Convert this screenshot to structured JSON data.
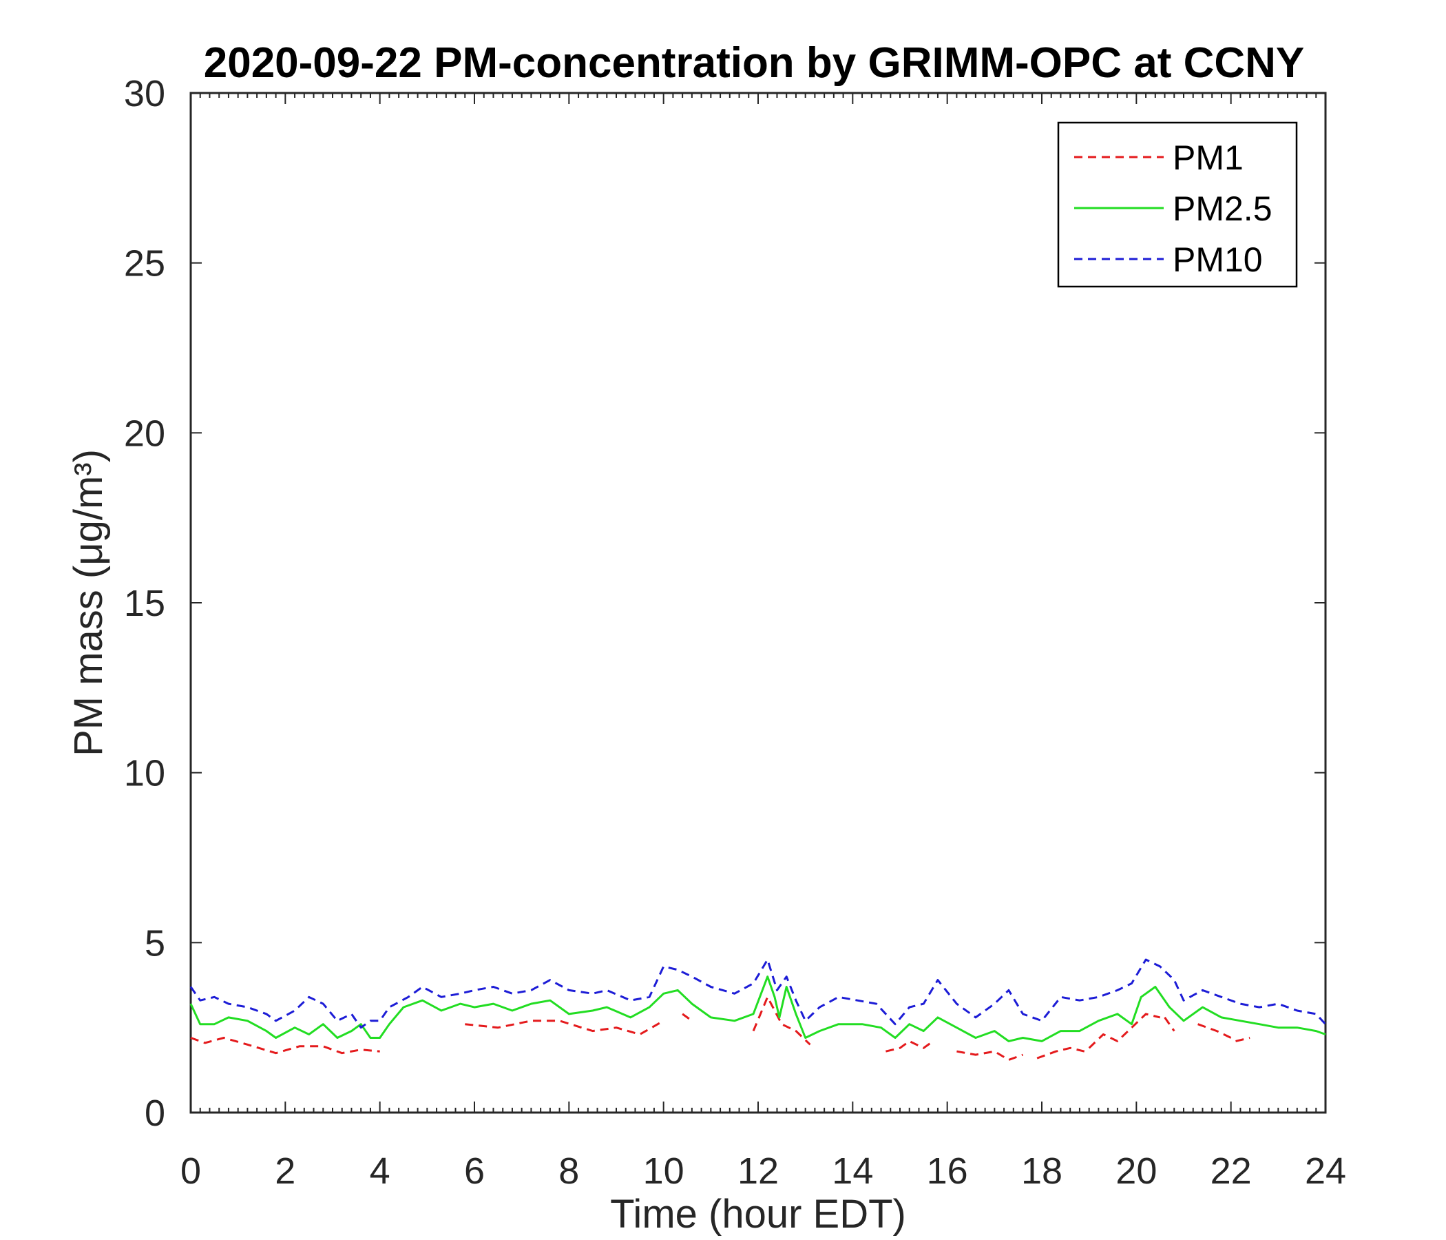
{
  "chart_data": {
    "type": "line",
    "title": "2020-09-22 PM-concentration by GRIMM-OPC at CCNY",
    "xlabel": "Time (hour EDT)",
    "ylabel": "PM mass (μg/m³)",
    "xlim": [
      0,
      24
    ],
    "ylim": [
      0,
      30
    ],
    "xticks": [
      0,
      2,
      4,
      6,
      8,
      10,
      12,
      14,
      16,
      18,
      20,
      22,
      24
    ],
    "yticks": [
      0,
      5,
      10,
      15,
      20,
      25,
      30
    ],
    "grid": false,
    "legend_position": "top-right",
    "series": [
      {
        "name": "PM1",
        "color": "#e41a1c",
        "dash": "dashed",
        "points": [
          [
            0,
            2.2
          ],
          [
            0.3,
            2.05
          ],
          [
            0.7,
            2.2
          ],
          [
            1.2,
            2.0
          ],
          [
            1.8,
            1.75
          ],
          [
            2.3,
            1.95
          ],
          [
            2.8,
            1.95
          ],
          [
            3.2,
            1.75
          ],
          [
            3.6,
            1.85
          ],
          [
            4.0,
            1.8
          ],
          null,
          [
            5.8,
            2.6
          ],
          [
            6.5,
            2.5
          ],
          [
            7.2,
            2.7
          ],
          [
            7.8,
            2.7
          ],
          [
            8.5,
            2.4
          ],
          [
            9.0,
            2.5
          ],
          [
            9.5,
            2.3
          ],
          [
            10.0,
            2.7
          ],
          null,
          [
            10.4,
            2.9
          ],
          [
            10.6,
            2.7
          ],
          null,
          [
            11.9,
            2.4
          ],
          [
            12.2,
            3.4
          ],
          [
            12.5,
            2.6
          ],
          [
            12.8,
            2.4
          ],
          [
            13.1,
            2.0
          ],
          null,
          [
            14.7,
            1.8
          ],
          [
            15.0,
            1.9
          ],
          [
            15.2,
            2.1
          ],
          [
            15.5,
            1.9
          ],
          [
            15.7,
            2.1
          ],
          null,
          [
            16.2,
            1.8
          ],
          [
            16.6,
            1.7
          ],
          [
            17.0,
            1.8
          ],
          [
            17.3,
            1.55
          ],
          [
            17.6,
            1.7
          ],
          null,
          [
            17.9,
            1.6
          ],
          [
            18.3,
            1.8
          ],
          [
            18.6,
            1.9
          ],
          [
            18.9,
            1.8
          ],
          null,
          [
            19.0,
            1.9
          ],
          [
            19.3,
            2.3
          ],
          [
            19.6,
            2.1
          ],
          [
            19.9,
            2.5
          ],
          [
            20.2,
            2.9
          ],
          [
            20.5,
            2.8
          ],
          null,
          [
            20.6,
            2.8
          ],
          [
            20.8,
            2.4
          ],
          null,
          [
            21.3,
            2.6
          ],
          [
            21.7,
            2.4
          ],
          [
            22.0,
            2.2
          ],
          null,
          [
            22.1,
            2.1
          ],
          [
            22.4,
            2.2
          ]
        ]
      },
      {
        "name": "PM2.5",
        "color": "#22dd22",
        "dash": "solid",
        "points": [
          [
            0,
            3.2
          ],
          [
            0.2,
            2.6
          ],
          [
            0.5,
            2.6
          ],
          [
            0.8,
            2.8
          ],
          [
            1.2,
            2.7
          ],
          [
            1.6,
            2.4
          ],
          [
            1.8,
            2.2
          ],
          [
            2.2,
            2.5
          ],
          [
            2.5,
            2.3
          ],
          [
            2.8,
            2.6
          ],
          [
            3.1,
            2.2
          ],
          [
            3.4,
            2.4
          ],
          [
            3.6,
            2.6
          ],
          [
            3.8,
            2.2
          ],
          [
            4.0,
            2.2
          ],
          [
            4.2,
            2.6
          ],
          [
            4.5,
            3.1
          ],
          [
            4.9,
            3.3
          ],
          [
            5.3,
            3.0
          ],
          [
            5.7,
            3.2
          ],
          [
            6.0,
            3.1
          ],
          [
            6.4,
            3.2
          ],
          [
            6.8,
            3.0
          ],
          [
            7.2,
            3.2
          ],
          [
            7.6,
            3.3
          ],
          [
            8.0,
            2.9
          ],
          [
            8.5,
            3.0
          ],
          [
            8.8,
            3.1
          ],
          [
            9.3,
            2.8
          ],
          [
            9.7,
            3.1
          ],
          [
            10.0,
            3.5
          ],
          [
            10.3,
            3.6
          ],
          [
            10.6,
            3.2
          ],
          [
            11.0,
            2.8
          ],
          [
            11.5,
            2.7
          ],
          [
            11.9,
            2.9
          ],
          [
            12.2,
            4.0
          ],
          [
            12.35,
            3.4
          ],
          [
            12.45,
            2.8
          ],
          [
            12.6,
            3.7
          ],
          [
            12.8,
            2.9
          ],
          [
            13.0,
            2.2
          ],
          [
            13.3,
            2.4
          ],
          [
            13.7,
            2.6
          ],
          [
            14.2,
            2.6
          ],
          [
            14.6,
            2.5
          ],
          [
            14.9,
            2.2
          ],
          [
            15.2,
            2.6
          ],
          [
            15.5,
            2.4
          ],
          [
            15.8,
            2.8
          ],
          [
            16.2,
            2.5
          ],
          [
            16.6,
            2.2
          ],
          [
            17.0,
            2.4
          ],
          [
            17.3,
            2.1
          ],
          [
            17.6,
            2.2
          ],
          [
            18.0,
            2.1
          ],
          [
            18.4,
            2.4
          ],
          [
            18.8,
            2.4
          ],
          [
            19.2,
            2.7
          ],
          [
            19.6,
            2.9
          ],
          [
            19.9,
            2.6
          ],
          [
            20.1,
            3.4
          ],
          [
            20.4,
            3.7
          ],
          [
            20.7,
            3.1
          ],
          [
            21.0,
            2.7
          ],
          [
            21.4,
            3.1
          ],
          [
            21.8,
            2.8
          ],
          [
            22.2,
            2.7
          ],
          [
            22.6,
            2.6
          ],
          [
            23.0,
            2.5
          ],
          [
            23.4,
            2.5
          ],
          [
            23.8,
            2.4
          ],
          [
            24.0,
            2.3
          ]
        ]
      },
      {
        "name": "PM10",
        "color": "#1c1cd6",
        "dash": "dashed",
        "points": [
          [
            0,
            3.7
          ],
          [
            0.2,
            3.3
          ],
          [
            0.5,
            3.4
          ],
          [
            0.8,
            3.2
          ],
          [
            1.2,
            3.1
          ],
          [
            1.6,
            2.9
          ],
          [
            1.8,
            2.7
          ],
          [
            2.2,
            3.0
          ],
          [
            2.5,
            3.4
          ],
          [
            2.8,
            3.2
          ],
          [
            3.1,
            2.7
          ],
          [
            3.4,
            2.9
          ],
          [
            3.6,
            2.5
          ],
          [
            3.8,
            2.7
          ],
          [
            4.0,
            2.7
          ],
          [
            4.2,
            3.1
          ],
          [
            4.6,
            3.4
          ],
          [
            4.9,
            3.7
          ],
          [
            5.3,
            3.4
          ],
          [
            5.7,
            3.5
          ],
          [
            6.0,
            3.6
          ],
          [
            6.4,
            3.7
          ],
          [
            6.8,
            3.5
          ],
          [
            7.2,
            3.6
          ],
          [
            7.6,
            3.9
          ],
          [
            8.0,
            3.6
          ],
          [
            8.5,
            3.5
          ],
          [
            8.8,
            3.6
          ],
          [
            9.3,
            3.3
          ],
          [
            9.7,
            3.4
          ],
          [
            10.0,
            4.3
          ],
          [
            10.3,
            4.2
          ],
          [
            10.6,
            4.0
          ],
          [
            11.0,
            3.7
          ],
          [
            11.5,
            3.5
          ],
          [
            11.9,
            3.8
          ],
          [
            12.2,
            4.5
          ],
          [
            12.4,
            3.6
          ],
          [
            12.6,
            4.0
          ],
          [
            12.8,
            3.3
          ],
          [
            13.0,
            2.7
          ],
          [
            13.3,
            3.1
          ],
          [
            13.7,
            3.4
          ],
          [
            14.1,
            3.3
          ],
          [
            14.5,
            3.2
          ],
          [
            14.9,
            2.6
          ],
          [
            15.2,
            3.1
          ],
          [
            15.5,
            3.2
          ],
          [
            15.8,
            3.9
          ],
          [
            16.2,
            3.2
          ],
          [
            16.6,
            2.8
          ],
          [
            17.0,
            3.2
          ],
          [
            17.3,
            3.6
          ],
          [
            17.6,
            2.9
          ],
          [
            18.0,
            2.7
          ],
          [
            18.4,
            3.4
          ],
          [
            18.8,
            3.3
          ],
          [
            19.2,
            3.4
          ],
          [
            19.6,
            3.6
          ],
          [
            19.9,
            3.8
          ],
          [
            20.2,
            4.5
          ],
          [
            20.5,
            4.3
          ],
          [
            20.8,
            3.9
          ],
          [
            21.0,
            3.3
          ],
          [
            21.4,
            3.6
          ],
          [
            21.8,
            3.4
          ],
          [
            22.2,
            3.2
          ],
          [
            22.6,
            3.1
          ],
          [
            23.0,
            3.2
          ],
          [
            23.4,
            3.0
          ],
          [
            23.8,
            2.9
          ],
          [
            24.0,
            2.6
          ]
        ]
      }
    ]
  }
}
